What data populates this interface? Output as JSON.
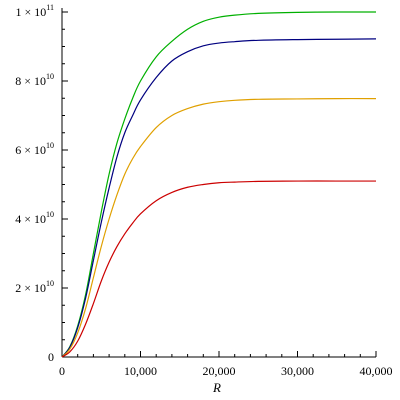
{
  "chart_data": {
    "type": "line",
    "title": "",
    "xlabel": "R",
    "ylabel": "",
    "xlim": [
      0,
      40000
    ],
    "ylim": [
      0,
      100000000000
    ],
    "grid": false,
    "legend": "none",
    "x_ticks": [
      {
        "value": 0,
        "label": "0"
      },
      {
        "value": 10000,
        "label": "10,000"
      },
      {
        "value": 20000,
        "label": "20,000"
      },
      {
        "value": 30000,
        "label": "30,000"
      },
      {
        "value": 40000,
        "label": "40,000"
      }
    ],
    "y_ticks": [
      {
        "value": 0,
        "mantissa": "0",
        "exponent": ""
      },
      {
        "value": 20000000000,
        "mantissa": "2 × 10",
        "exponent": "10"
      },
      {
        "value": 40000000000,
        "mantissa": "4 × 10",
        "exponent": "10"
      },
      {
        "value": 60000000000,
        "mantissa": "6 × 10",
        "exponent": "10"
      },
      {
        "value": 80000000000,
        "mantissa": "8 × 10",
        "exponent": "10"
      },
      {
        "value": 100000000000,
        "mantissa": "1 × 10",
        "exponent": "11"
      }
    ],
    "x": [
      0,
      1000,
      2000,
      3000,
      4000,
      5000,
      6000,
      7000,
      8000,
      9000,
      10000,
      12000,
      14000,
      16000,
      18000,
      20000,
      22000,
      25000,
      30000,
      35000,
      40000
    ],
    "series": [
      {
        "color": "#00b000",
        "values": [
          0,
          3000000000,
          9000000000,
          18000000000,
          30000000000,
          42000000000,
          53000000000,
          62000000000,
          69000000000,
          75000000000,
          80000000000,
          87000000000,
          91500000000,
          95000000000,
          97300000000,
          98500000000,
          99100000000,
          99600000000,
          99900000000,
          100000000000,
          100000000000
        ]
      },
      {
        "color": "#000080",
        "values": [
          0,
          2800000000,
          8500000000,
          17000000000,
          28000000000,
          39000000000,
          49000000000,
          58000000000,
          65000000000,
          70000000000,
          74500000000,
          81000000000,
          85800000000,
          88500000000,
          90200000000,
          91000000000,
          91400000000,
          91800000000,
          92000000000,
          92100000000,
          92200000000
        ]
      },
      {
        "color": "#e0a000",
        "values": [
          0,
          2300000000,
          7000000000,
          14000000000,
          23000000000,
          32000000000,
          40000000000,
          47000000000,
          53000000000,
          57500000000,
          61000000000,
          66500000000,
          70000000000,
          72000000000,
          73300000000,
          74000000000,
          74400000000,
          74700000000,
          74800000000,
          74900000000,
          74900000000
        ]
      },
      {
        "color": "#cc0000",
        "values": [
          0,
          1500000000,
          4600000000,
          9500000000,
          15500000000,
          22000000000,
          27500000000,
          32000000000,
          35700000000,
          38800000000,
          41500000000,
          45300000000,
          47700000000,
          49200000000,
          50000000000,
          50500000000,
          50700000000,
          50900000000,
          51000000000,
          51000000000,
          51000000000
        ]
      }
    ]
  }
}
